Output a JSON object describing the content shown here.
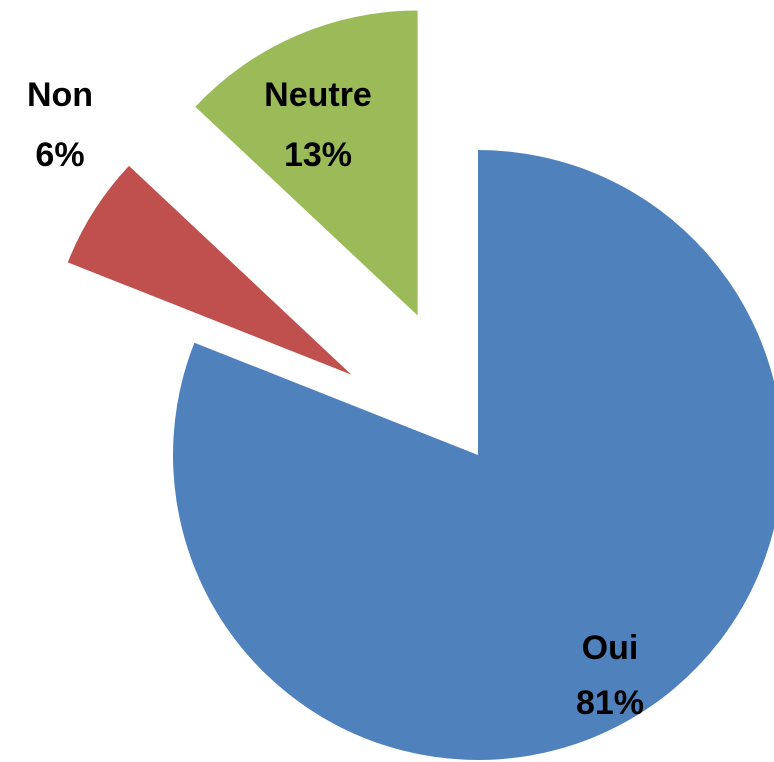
{
  "chart_data": {
    "type": "pie",
    "categories": [
      "Oui",
      "Non",
      "Neutre"
    ],
    "values": [
      81,
      6,
      13
    ],
    "value_labels": [
      "81%",
      "6%",
      "13%"
    ],
    "colors": [
      "#4f81bd",
      "#c0504d",
      "#9bbb59"
    ]
  }
}
